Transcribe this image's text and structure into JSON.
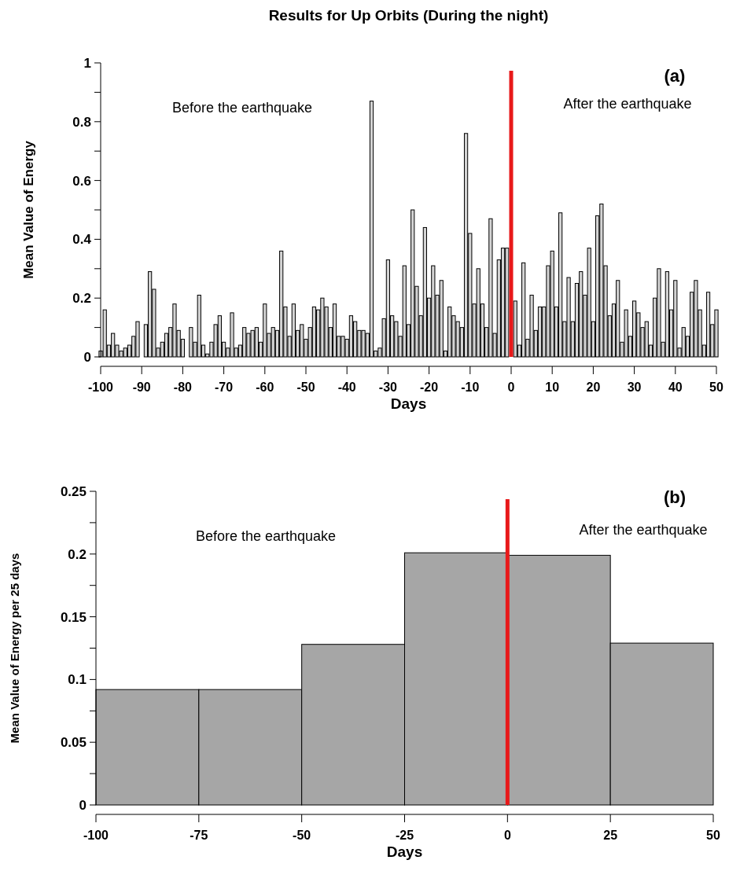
{
  "chart_data": [
    {
      "type": "bar",
      "title": "Results for Up Orbits (During the night)",
      "xlabel": "Days",
      "ylabel": "Mean Value of Energy",
      "x": [
        -100,
        -99,
        -98,
        -97,
        -96,
        -95,
        -94,
        -93,
        -92,
        -91,
        -90,
        -89,
        -88,
        -87,
        -86,
        -85,
        -84,
        -83,
        -82,
        -81,
        -80,
        -79,
        -78,
        -77,
        -76,
        -75,
        -74,
        -73,
        -72,
        -71,
        -70,
        -69,
        -68,
        -67,
        -66,
        -65,
        -64,
        -63,
        -62,
        -61,
        -60,
        -59,
        -58,
        -57,
        -56,
        -55,
        -54,
        -53,
        -52,
        -51,
        -50,
        -49,
        -48,
        -47,
        -46,
        -45,
        -44,
        -43,
        -42,
        -41,
        -40,
        -39,
        -38,
        -37,
        -36,
        -35,
        -34,
        -33,
        -32,
        -31,
        -30,
        -29,
        -28,
        -27,
        -26,
        -25,
        -24,
        -23,
        -22,
        -21,
        -20,
        -19,
        -18,
        -17,
        -16,
        -15,
        -14,
        -13,
        -12,
        -11,
        -10,
        -9,
        -8,
        -7,
        -6,
        -5,
        -4,
        -3,
        -2,
        -1,
        1,
        2,
        3,
        4,
        5,
        6,
        7,
        8,
        9,
        10,
        11,
        12,
        13,
        14,
        15,
        16,
        17,
        18,
        19,
        20,
        21,
        22,
        23,
        24,
        25,
        26,
        27,
        28,
        29,
        30,
        31,
        32,
        33,
        34,
        35,
        36,
        37,
        38,
        39,
        40,
        41,
        42,
        43,
        44,
        45,
        46,
        47,
        48,
        49,
        50
      ],
      "values": [
        0.02,
        0.16,
        0.04,
        0.08,
        0.04,
        0.02,
        0.03,
        0.04,
        0.07,
        0.12,
        0,
        0.11,
        0.29,
        0.23,
        0.03,
        0.05,
        0.08,
        0.1,
        0.18,
        0.09,
        0.06,
        0,
        0.1,
        0.05,
        0.21,
        0.04,
        0.01,
        0.05,
        0.11,
        0.14,
        0.05,
        0.03,
        0.15,
        0.03,
        0.04,
        0.1,
        0.08,
        0.09,
        0.1,
        0.05,
        0.18,
        0.08,
        0.1,
        0.09,
        0.36,
        0.17,
        0.07,
        0.18,
        0.09,
        0.11,
        0.06,
        0.1,
        0.17,
        0.16,
        0.2,
        0.17,
        0.1,
        0.18,
        0.07,
        0.07,
        0.06,
        0.14,
        0.12,
        0.09,
        0.09,
        0.08,
        0.87,
        0.02,
        0.03,
        0.13,
        0.33,
        0.14,
        0.12,
        0.07,
        0.31,
        0.11,
        0.5,
        0.24,
        0.14,
        0.44,
        0.2,
        0.31,
        0.21,
        0.26,
        0.02,
        0.17,
        0.14,
        0.12,
        0.1,
        0.76,
        0.42,
        0.18,
        0.3,
        0.18,
        0.1,
        0.47,
        0.08,
        0.33,
        0.37,
        0.37,
        0.19,
        0.04,
        0.32,
        0.06,
        0.21,
        0.09,
        0.17,
        0.17,
        0.31,
        0.36,
        0.17,
        0.49,
        0.12,
        0.27,
        0.12,
        0.25,
        0.29,
        0.21,
        0.37,
        0.12,
        0.48,
        0.52,
        0.31,
        0.14,
        0.18,
        0.26,
        0.05,
        0.16,
        0.07,
        0.19,
        0.15,
        0.1,
        0.12,
        0.04,
        0.2,
        0.3,
        0.05,
        0.29,
        0.16,
        0.26,
        0.03,
        0.1,
        0.07,
        0.22,
        0.26,
        0.16,
        0.04,
        0.22,
        0.11,
        0.16
      ],
      "color": "#d4d4d4",
      "xlim": [
        -100,
        50
      ],
      "xticks": [
        -100,
        -90,
        -80,
        -70,
        -60,
        -50,
        -40,
        -30,
        -20,
        -10,
        0,
        10,
        20,
        30,
        40,
        50
      ],
      "ylim": [
        0,
        1
      ],
      "yticks": [
        0,
        {
          "value": 0.1,
          "label": null
        },
        0.2,
        {
          "value": 0.3,
          "label": null
        },
        0.4,
        {
          "value": 0.5,
          "label": null
        },
        0.6,
        {
          "value": 0.7,
          "label": null
        },
        0.8,
        {
          "value": 0.9,
          "label": null
        },
        1
      ],
      "ref_lines": [
        {
          "axis": "x",
          "value": 0,
          "color": "#e8191a"
        }
      ],
      "annotations": [
        "(a)",
        "Before the earthquake",
        "After the earthquake"
      ]
    },
    {
      "type": "histogram",
      "xlabel": "Days",
      "ylabel": "Mean Value of Energy per 25 days",
      "bins": [
        -100,
        -75,
        -50,
        -25,
        0,
        25,
        50
      ],
      "values": [
        0.092,
        0.092,
        0.128,
        0.201,
        0.199,
        0.129
      ],
      "color": "#a6a6a6",
      "xlim": [
        -100,
        50
      ],
      "xticks": [
        -100,
        -75,
        -50,
        -25,
        0,
        25,
        50
      ],
      "ylim": [
        0,
        0.25
      ],
      "yticks": [
        0,
        {
          "value": 0.025,
          "label": null
        },
        0.05,
        {
          "value": 0.075,
          "label": null
        },
        0.1,
        {
          "value": 0.125,
          "label": null
        },
        0.15,
        {
          "value": 0.175,
          "label": null
        },
        0.2,
        {
          "value": 0.225,
          "label": null
        },
        0.25
      ],
      "ref_lines": [
        {
          "axis": "x",
          "value": 0,
          "color": "#e8191a"
        }
      ],
      "annotations": [
        "(b)",
        "Before the earthquake",
        "After the earthquake"
      ]
    }
  ]
}
